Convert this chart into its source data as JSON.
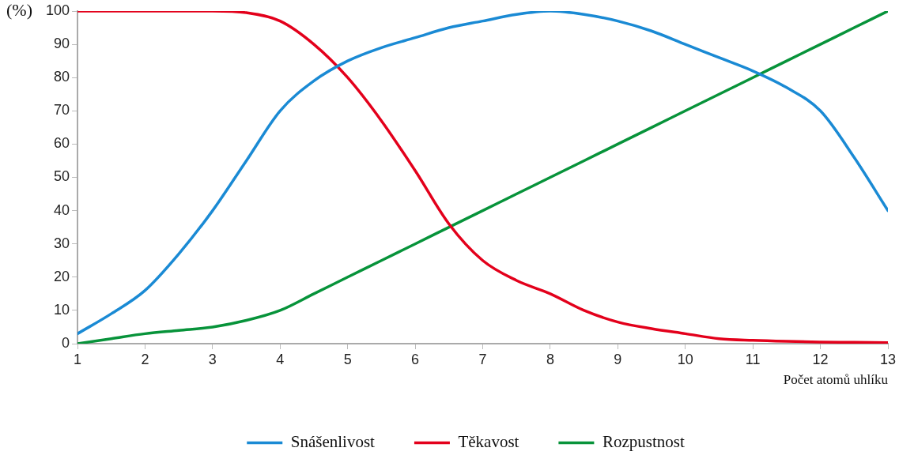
{
  "chart_data": {
    "type": "line",
    "ylabel": "(%)",
    "xlabel": "Počet atomů uhlíku",
    "x": [
      1,
      1.5,
      2,
      2.5,
      3,
      3.5,
      4,
      4.5,
      5,
      5.5,
      6,
      6.5,
      7,
      7.5,
      8,
      8.5,
      9,
      9.5,
      10,
      10.5,
      11,
      11.5,
      12,
      12.5,
      13
    ],
    "series": [
      {
        "name": "Snášenlivost",
        "color": "#1a8ad4",
        "values": [
          3,
          9,
          16,
          27,
          40,
          55,
          70,
          79,
          85,
          89,
          92,
          95,
          97,
          99,
          100,
          99,
          97,
          94,
          90,
          86,
          82,
          77,
          70,
          56,
          40
        ]
      },
      {
        "name": "Těkavost",
        "color": "#e3001b",
        "values": [
          100,
          100,
          100,
          100,
          100,
          99.5,
          97,
          90,
          80,
          67,
          52,
          36,
          25,
          19,
          15,
          10,
          6.5,
          4.5,
          3,
          1.5,
          1,
          0.7,
          0.5,
          0.4,
          0.3
        ]
      },
      {
        "name": "Rozpustnost",
        "color": "#07933a",
        "values": [
          0,
          1.5,
          3,
          4,
          5,
          7,
          10,
          15,
          20,
          25,
          30,
          35,
          40,
          45,
          50,
          55,
          60,
          65,
          70,
          75,
          80,
          85,
          90,
          95,
          100
        ]
      }
    ],
    "xlim": [
      1,
      13
    ],
    "xticks": [
      1,
      2,
      3,
      4,
      5,
      6,
      7,
      8,
      9,
      10,
      11,
      12,
      13
    ],
    "ylim": [
      0,
      100
    ],
    "yticks": [
      0,
      10,
      20,
      30,
      40,
      50,
      60,
      70,
      80,
      90,
      100
    ],
    "grid": false,
    "legend": "bottom",
    "marker": "none",
    "line_style": "solid"
  }
}
